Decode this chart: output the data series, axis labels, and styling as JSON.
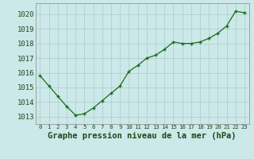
{
  "x": [
    0,
    1,
    2,
    3,
    4,
    5,
    6,
    7,
    8,
    9,
    10,
    11,
    12,
    13,
    14,
    15,
    16,
    17,
    18,
    19,
    20,
    21,
    22,
    23
  ],
  "y": [
    1015.8,
    1015.1,
    1014.4,
    1013.7,
    1013.1,
    1013.2,
    1013.6,
    1014.1,
    1014.6,
    1015.1,
    1016.1,
    1016.5,
    1017.0,
    1017.2,
    1017.6,
    1018.1,
    1018.0,
    1018.0,
    1018.1,
    1018.35,
    1018.7,
    1019.2,
    1020.2,
    1020.1
  ],
  "line_color": "#1a6b1a",
  "marker_color": "#1a6b1a",
  "bg_color": "#cce8e8",
  "grid_color": "#aacccc",
  "xlabel": "Graphe pression niveau de la mer (hPa)",
  "ylim": [
    1012.5,
    1020.75
  ],
  "xlim": [
    -0.5,
    23.5
  ],
  "yticks": [
    1013,
    1014,
    1015,
    1016,
    1017,
    1018,
    1019,
    1020
  ],
  "xticks": [
    0,
    1,
    2,
    3,
    4,
    5,
    6,
    7,
    8,
    9,
    10,
    11,
    12,
    13,
    14,
    15,
    16,
    17,
    18,
    19,
    20,
    21,
    22,
    23
  ],
  "xlabel_fontsize": 7.5,
  "ytick_fontsize": 6.5,
  "xtick_fontsize": 5.2,
  "spine_color": "#888888",
  "text_color": "#1a4a1a"
}
